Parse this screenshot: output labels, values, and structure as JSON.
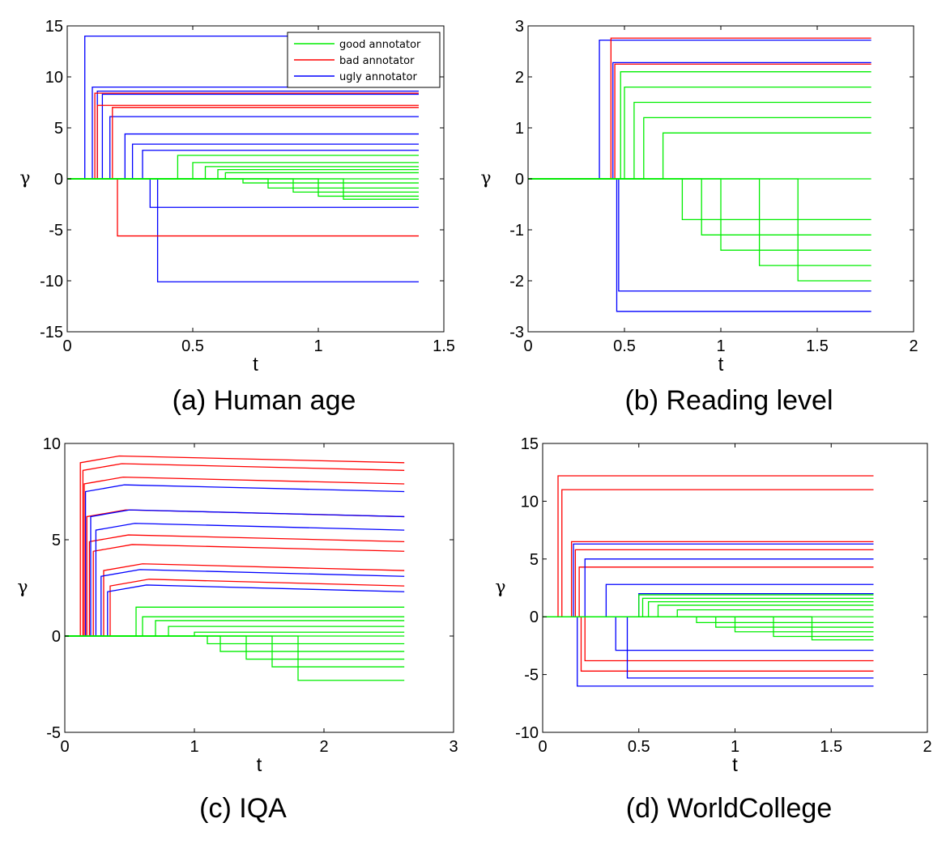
{
  "chart_data": [
    {
      "type": "line",
      "caption": "(a) Human age",
      "xlabel": "t",
      "ylabel": "γ",
      "xlim": [
        0,
        1.5
      ],
      "ylim": [
        -15,
        15
      ],
      "xticks": [
        "0",
        "0.5",
        "1",
        "1.5"
      ],
      "yticks": [
        "15",
        "10",
        "5",
        "0",
        "-5",
        "-10",
        "-15"
      ],
      "legend": {
        "position": "top-right",
        "entries": [
          {
            "label": "good annotator",
            "color": "#00ee00"
          },
          {
            "label": "bad annotator",
            "color": "#ff0000"
          },
          {
            "label": "ugly annotator",
            "color": "#0000ff"
          }
        ]
      },
      "series": [
        {
          "name": "ugly annotator",
          "color": "#0000ff",
          "t_enter": [
            0.07,
            0.1,
            0.12,
            0.14,
            0.17,
            0.23,
            0.26,
            0.3,
            0.33,
            0.36
          ],
          "values": [
            14,
            9,
            8.6,
            8.3,
            6.1,
            4.4,
            3.4,
            2.8,
            -2.8,
            -10.1
          ]
        },
        {
          "name": "bad annotator",
          "color": "#ff0000",
          "t_enter": [
            0.11,
            0.12,
            0.18,
            0.2
          ],
          "values": [
            8.4,
            7.2,
            7.0,
            -5.6
          ]
        },
        {
          "name": "good annotator",
          "color": "#00ee00",
          "t_enter": [
            0.44,
            0.5,
            0.55,
            0.6,
            0.63,
            0.7,
            0.8,
            0.9,
            1.0,
            1.1
          ],
          "values": [
            2.3,
            1.6,
            1.2,
            0.9,
            0.6,
            -0.4,
            -0.9,
            -1.3,
            -1.7,
            -2.0
          ]
        }
      ]
    },
    {
      "type": "line",
      "caption": "(b) Reading level",
      "xlabel": "t",
      "ylabel": "γ",
      "xlim": [
        0,
        2
      ],
      "ylim": [
        -3,
        3
      ],
      "xticks": [
        "0",
        "0.5",
        "1",
        "1.5",
        "2"
      ],
      "yticks": [
        "3",
        "2",
        "1",
        "0",
        "-1",
        "-2",
        "-3"
      ],
      "series": [
        {
          "name": "ugly annotator",
          "color": "#0000ff",
          "t_enter": [
            0.37,
            0.44,
            0.46,
            0.47
          ],
          "values": [
            2.72,
            2.28,
            -2.6,
            -2.2
          ]
        },
        {
          "name": "bad annotator",
          "color": "#ff0000",
          "t_enter": [
            0.43,
            0.45
          ],
          "values": [
            2.76,
            2.25
          ]
        },
        {
          "name": "good annotator",
          "color": "#00ee00",
          "t_enter": [
            0.48,
            0.5,
            0.55,
            0.6,
            0.7,
            0.8,
            0.9,
            1.0,
            1.2,
            1.4
          ],
          "values": [
            2.1,
            1.8,
            1.5,
            1.2,
            0.9,
            -0.8,
            -1.1,
            -1.4,
            -1.7,
            -2.0
          ]
        }
      ]
    },
    {
      "type": "line",
      "caption": "(c) IQA",
      "xlabel": "t",
      "ylabel": "γ",
      "xlim": [
        0,
        3
      ],
      "ylim": [
        -5,
        10
      ],
      "xticks": [
        "0",
        "1",
        "2",
        "3"
      ],
      "yticks": [
        "10",
        "5",
        "0",
        "-5"
      ],
      "series": [
        {
          "name": "bad annotator",
          "color": "#ff0000",
          "t_enter": [
            0.12,
            0.14,
            0.15,
            0.17,
            0.19,
            0.22,
            0.3,
            0.35
          ],
          "values": [
            9.0,
            8.6,
            7.9,
            6.2,
            4.9,
            4.4,
            3.4,
            2.6
          ]
        },
        {
          "name": "ugly annotator",
          "color": "#0000ff",
          "t_enter": [
            0.16,
            0.2,
            0.24,
            0.28,
            0.33
          ],
          "values": [
            7.5,
            6.2,
            5.5,
            3.1,
            2.3
          ]
        },
        {
          "name": "good annotator",
          "color": "#00ee00",
          "t_enter": [
            0.55,
            0.6,
            0.7,
            0.8,
            1.0,
            1.1,
            1.2,
            1.4,
            1.6,
            1.8
          ],
          "values": [
            1.5,
            1.0,
            0.8,
            0.5,
            0.2,
            -0.4,
            -0.8,
            -1.2,
            -1.6,
            -2.3
          ]
        }
      ]
    },
    {
      "type": "line",
      "caption": "(d) WorldCollege",
      "xlabel": "t",
      "ylabel": "γ",
      "xlim": [
        0,
        2
      ],
      "ylim": [
        -10,
        15
      ],
      "xticks": [
        "0",
        "0.5",
        "1",
        "1.5",
        "2"
      ],
      "yticks": [
        "15",
        "10",
        "5",
        "0",
        "-5",
        "-10"
      ],
      "series": [
        {
          "name": "bad annotator",
          "color": "#ff0000",
          "t_enter": [
            0.08,
            0.1,
            0.15,
            0.17,
            0.19,
            0.2,
            0.22
          ],
          "values": [
            12.2,
            11.0,
            6.5,
            5.8,
            4.3,
            -4.7,
            -3.8
          ]
        },
        {
          "name": "ugly annotator",
          "color": "#0000ff",
          "t_enter": [
            0.16,
            0.18,
            0.22,
            0.33,
            0.38,
            0.44,
            0.5
          ],
          "values": [
            6.3,
            -6.0,
            5.0,
            2.8,
            -2.9,
            -5.3,
            2.0
          ]
        },
        {
          "name": "good annotator",
          "color": "#00ee00",
          "t_enter": [
            0.5,
            0.52,
            0.55,
            0.6,
            0.7,
            0.8,
            0.9,
            1.0,
            1.2,
            1.4
          ],
          "values": [
            1.9,
            1.6,
            1.3,
            1.0,
            0.6,
            -0.5,
            -0.9,
            -1.3,
            -1.7,
            -2.0
          ]
        }
      ]
    }
  ]
}
